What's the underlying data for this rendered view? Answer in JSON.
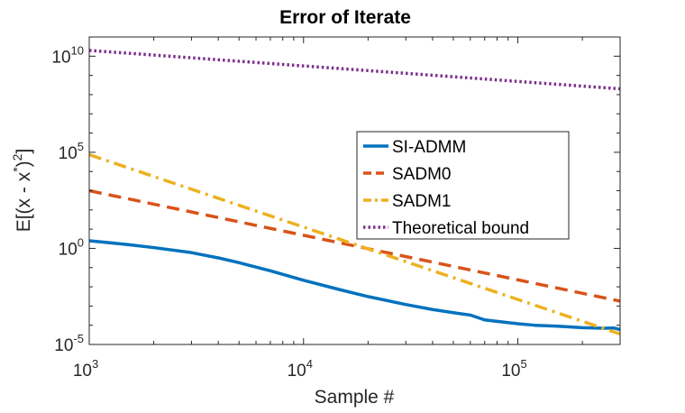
{
  "chart_data": {
    "type": "line",
    "title": "Error of Iterate",
    "xlabel": "Sample #",
    "ylabel": "E[(x - x*)²]",
    "xscale": "log",
    "yscale": "log",
    "xlim": [
      1000,
      300000
    ],
    "ylim": [
      1e-05,
      100000000000
    ],
    "xticks": [
      {
        "value": 1000,
        "base": "10",
        "exp": "3"
      },
      {
        "value": 10000,
        "base": "10",
        "exp": "4"
      },
      {
        "value": 100000,
        "base": "10",
        "exp": "5"
      }
    ],
    "yticks": [
      {
        "value": 1e-05,
        "base": "10",
        "exp": "-5"
      },
      {
        "value": 1,
        "base": "10",
        "exp": "0"
      },
      {
        "value": 100000,
        "base": "10",
        "exp": "5"
      },
      {
        "value": 10000000000,
        "base": "10",
        "exp": "10"
      }
    ],
    "legend_position": "center-right",
    "series": [
      {
        "name": "SI-ADMM",
        "color": "#0072BD",
        "style": "solid",
        "x": [
          1000,
          1500,
          2000,
          3000,
          4000,
          5000,
          7000,
          10000,
          15000,
          20000,
          30000,
          40000,
          50000,
          60000,
          70000,
          80000,
          100000,
          120000,
          150000,
          200000,
          250000,
          280000,
          300000
        ],
        "y": [
          2.5,
          1.6,
          1.1,
          0.6,
          0.32,
          0.18,
          0.068,
          0.022,
          0.0068,
          0.0031,
          0.0012,
          0.00066,
          0.00045,
          0.00034,
          0.00019,
          0.00016,
          0.00012,
          0.0001,
          9e-05,
          7.5e-05,
          7e-05,
          7.2e-05,
          6e-05
        ]
      },
      {
        "name": "SADM0",
        "color": "#D95319",
        "style": "dashed",
        "x": [
          1000,
          300000
        ],
        "y": [
          1000,
          0.0018
        ]
      },
      {
        "name": "SADM1",
        "color": "#EDB120",
        "style": "dashdot",
        "x": [
          1000,
          300000
        ],
        "y": [
          75000,
          3.5e-05
        ]
      },
      {
        "name": "Theoretical bound",
        "color": "#7E2F8E",
        "style": "dotted",
        "x": [
          1000,
          300000
        ],
        "y": [
          20000000000,
          200000000
        ]
      }
    ]
  }
}
